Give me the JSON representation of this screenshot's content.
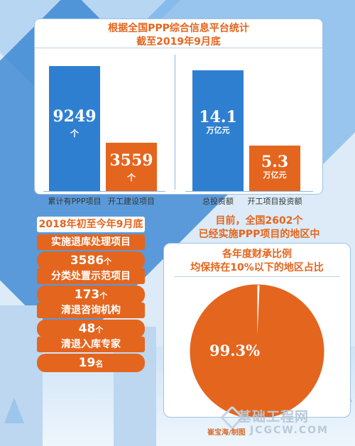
{
  "title": {
    "line1": "根据全国PPP综合信息平台统计",
    "line2": "截至2019年9月底"
  },
  "chart_data": [
    {
      "type": "bar",
      "categories": [
        "累计有PPP项目",
        "开工建设项目"
      ],
      "values": [
        9249,
        3559
      ],
      "unit": "个",
      "value_labels": [
        "9249",
        "3559"
      ]
    },
    {
      "type": "bar",
      "categories": [
        "总投资额",
        "开工项目投资额"
      ],
      "values": [
        14.1,
        5.3
      ],
      "unit": "万亿元",
      "value_labels": [
        "14.1",
        "5.3"
      ]
    },
    {
      "type": "pie",
      "title": [
        "各年度财承比例",
        "均保持在10%以下的地区占比"
      ],
      "slices": [
        {
          "value": 99.3,
          "color": "#e4651e"
        },
        {
          "value": 0.7,
          "color": "#ffffff"
        }
      ],
      "label": "99.3%"
    }
  ],
  "left_panel": {
    "header": "2018年初至今年9月底",
    "items": [
      {
        "label": "实施退库处理项目",
        "value": "3586",
        "unit": "个"
      },
      {
        "label": "分类处置示范项目",
        "value": "173",
        "unit": "个"
      },
      {
        "label": "清退咨询机构",
        "value": "48",
        "unit": "个"
      },
      {
        "label": "清退入库专家",
        "value": "19",
        "unit": "名"
      }
    ]
  },
  "right_header": {
    "line1": "目前，全国2602个",
    "line2": "已经实施PPP项目的地区中"
  },
  "watermark": {
    "name": "基础工程网",
    "url": "JCGCW.COM",
    "source": "崔宝海/制图"
  },
  "colors": {
    "accent": "#e4651e",
    "blue": "#2f7fd0"
  }
}
